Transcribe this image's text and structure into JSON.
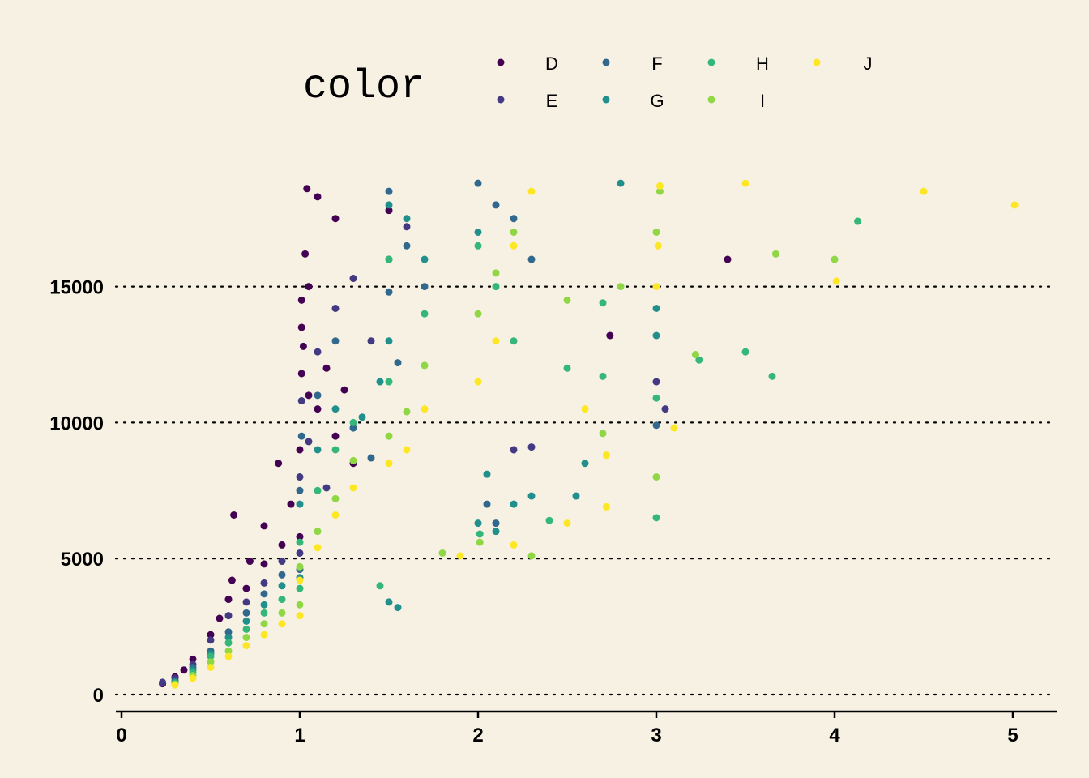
{
  "chart_data": {
    "type": "scatter",
    "title": "",
    "xlabel": "",
    "ylabel": "",
    "xlim": [
      0,
      5.25
    ],
    "ylim": [
      0,
      19000
    ],
    "x_ticks": [
      0,
      1,
      2,
      3,
      4,
      5
    ],
    "y_ticks": [
      0,
      5000,
      10000,
      15000
    ],
    "grid": "horizontal dotted",
    "legend": {
      "title": "color",
      "position": "top",
      "entries": [
        {
          "name": "D",
          "color": "#440154"
        },
        {
          "name": "E",
          "color": "#443A83"
        },
        {
          "name": "F",
          "color": "#31688E"
        },
        {
          "name": "G",
          "color": "#21908C"
        },
        {
          "name": "H",
          "color": "#35B779"
        },
        {
          "name": "I",
          "color": "#8FD744"
        },
        {
          "name": "J",
          "color": "#FDE725"
        }
      ]
    },
    "background": "#F7F1E3",
    "series": [
      {
        "name": "D",
        "color": "#440154",
        "points": [
          [
            0.23,
            400
          ],
          [
            0.3,
            650
          ],
          [
            0.35,
            900
          ],
          [
            0.4,
            1300
          ],
          [
            0.5,
            2200
          ],
          [
            0.55,
            2800
          ],
          [
            0.6,
            3500
          ],
          [
            0.62,
            4200
          ],
          [
            0.63,
            6600
          ],
          [
            0.7,
            3900
          ],
          [
            0.72,
            4900
          ],
          [
            0.8,
            4800
          ],
          [
            0.9,
            5500
          ],
          [
            1.0,
            5800
          ],
          [
            1.0,
            9000
          ],
          [
            1.01,
            11800
          ],
          [
            1.02,
            12800
          ],
          [
            1.03,
            16200
          ],
          [
            1.04,
            18600
          ],
          [
            1.1,
            18300
          ],
          [
            1.2,
            17500
          ],
          [
            1.01,
            13500
          ],
          [
            1.05,
            11000
          ],
          [
            1.1,
            10500
          ],
          [
            1.2,
            9500
          ],
          [
            1.05,
            15000
          ],
          [
            1.01,
            14500
          ],
          [
            3.4,
            16000
          ],
          [
            2.74,
            13200
          ],
          [
            1.5,
            17800
          ],
          [
            1.3,
            8500
          ],
          [
            0.95,
            7000
          ],
          [
            0.88,
            8500
          ],
          [
            0.8,
            6200
          ],
          [
            1.15,
            12000
          ],
          [
            1.25,
            11200
          ]
        ]
      },
      {
        "name": "E",
        "color": "#443A83",
        "points": [
          [
            0.23,
            450
          ],
          [
            0.3,
            600
          ],
          [
            0.4,
            1100
          ],
          [
            0.5,
            2000
          ],
          [
            0.6,
            2900
          ],
          [
            0.7,
            3400
          ],
          [
            0.8,
            4100
          ],
          [
            0.9,
            4900
          ],
          [
            1.0,
            5200
          ],
          [
            1.0,
            8000
          ],
          [
            1.01,
            10800
          ],
          [
            1.1,
            12600
          ],
          [
            1.2,
            14200
          ],
          [
            1.3,
            15300
          ],
          [
            1.5,
            16000
          ],
          [
            1.6,
            17200
          ],
          [
            3.0,
            11500
          ],
          [
            3.05,
            10500
          ],
          [
            1.05,
            9300
          ],
          [
            1.15,
            7600
          ],
          [
            1.4,
            13000
          ],
          [
            2.2,
            9000
          ],
          [
            2.3,
            9100
          ]
        ]
      },
      {
        "name": "F",
        "color": "#31688E",
        "points": [
          [
            0.3,
            500
          ],
          [
            0.4,
            1000
          ],
          [
            0.5,
            1600
          ],
          [
            0.6,
            2300
          ],
          [
            0.7,
            3000
          ],
          [
            0.8,
            3700
          ],
          [
            0.9,
            4400
          ],
          [
            1.0,
            4600
          ],
          [
            1.0,
            7500
          ],
          [
            1.01,
            9500
          ],
          [
            1.1,
            11000
          ],
          [
            1.2,
            13000
          ],
          [
            1.5,
            14800
          ],
          [
            1.5,
            18500
          ],
          [
            1.6,
            16500
          ],
          [
            1.7,
            15000
          ],
          [
            2.0,
            18800
          ],
          [
            2.1,
            18000
          ],
          [
            2.2,
            17500
          ],
          [
            2.3,
            16000
          ],
          [
            3.0,
            9900
          ],
          [
            1.3,
            9800
          ],
          [
            1.4,
            8700
          ],
          [
            1.55,
            12200
          ],
          [
            2.05,
            7000
          ],
          [
            2.1,
            6300
          ]
        ]
      },
      {
        "name": "G",
        "color": "#21908C",
        "points": [
          [
            0.3,
            450
          ],
          [
            0.4,
            900
          ],
          [
            0.5,
            1500
          ],
          [
            0.6,
            2100
          ],
          [
            0.7,
            2700
          ],
          [
            0.8,
            3300
          ],
          [
            0.9,
            4000
          ],
          [
            1.0,
            4300
          ],
          [
            1.0,
            7000
          ],
          [
            1.1,
            9000
          ],
          [
            1.2,
            10500
          ],
          [
            1.5,
            13000
          ],
          [
            1.5,
            18000
          ],
          [
            1.6,
            17500
          ],
          [
            1.7,
            16000
          ],
          [
            2.0,
            17000
          ],
          [
            2.0,
            6300
          ],
          [
            2.1,
            6000
          ],
          [
            2.2,
            7000
          ],
          [
            2.3,
            7300
          ],
          [
            2.6,
            8500
          ],
          [
            3.0,
            14200
          ],
          [
            3.0,
            13200
          ],
          [
            2.8,
            18800
          ],
          [
            1.35,
            10200
          ],
          [
            1.45,
            11500
          ],
          [
            2.05,
            8100
          ],
          [
            2.55,
            7300
          ],
          [
            1.5,
            3400
          ],
          [
            1.55,
            3200
          ]
        ]
      },
      {
        "name": "H",
        "color": "#35B779",
        "points": [
          [
            0.3,
            420
          ],
          [
            0.4,
            800
          ],
          [
            0.5,
            1400
          ],
          [
            0.6,
            1900
          ],
          [
            0.7,
            2400
          ],
          [
            0.8,
            3000
          ],
          [
            0.9,
            3500
          ],
          [
            1.0,
            3900
          ],
          [
            1.0,
            5600
          ],
          [
            1.1,
            7500
          ],
          [
            1.2,
            9000
          ],
          [
            1.3,
            10000
          ],
          [
            1.5,
            11500
          ],
          [
            1.5,
            16000
          ],
          [
            1.7,
            14000
          ],
          [
            2.0,
            16500
          ],
          [
            2.1,
            15000
          ],
          [
            2.2,
            13000
          ],
          [
            2.5,
            12000
          ],
          [
            2.7,
            14400
          ],
          [
            2.7,
            11700
          ],
          [
            3.0,
            6500
          ],
          [
            3.0,
            10900
          ],
          [
            3.24,
            12300
          ],
          [
            3.5,
            12600
          ],
          [
            3.65,
            11700
          ],
          [
            4.13,
            17400
          ],
          [
            2.01,
            5900
          ],
          [
            2.4,
            6400
          ],
          [
            1.45,
            4000
          ]
        ]
      },
      {
        "name": "I",
        "color": "#8FD744",
        "points": [
          [
            0.3,
            380
          ],
          [
            0.4,
            700
          ],
          [
            0.5,
            1200
          ],
          [
            0.6,
            1600
          ],
          [
            0.7,
            2100
          ],
          [
            0.8,
            2600
          ],
          [
            0.9,
            3000
          ],
          [
            1.0,
            3300
          ],
          [
            1.0,
            4700
          ],
          [
            1.1,
            6000
          ],
          [
            1.2,
            7200
          ],
          [
            1.3,
            8600
          ],
          [
            1.5,
            9500
          ],
          [
            1.6,
            10400
          ],
          [
            1.7,
            12100
          ],
          [
            2.0,
            14000
          ],
          [
            2.1,
            15500
          ],
          [
            2.2,
            17000
          ],
          [
            2.5,
            14500
          ],
          [
            2.8,
            15000
          ],
          [
            3.0,
            8000
          ],
          [
            3.0,
            17000
          ],
          [
            3.22,
            12500
          ],
          [
            3.67,
            16200
          ],
          [
            4.0,
            16000
          ],
          [
            2.01,
            5600
          ],
          [
            2.3,
            5100
          ],
          [
            1.8,
            5200
          ],
          [
            2.7,
            9600
          ],
          [
            3.02,
            18500
          ]
        ]
      },
      {
        "name": "J",
        "color": "#FDE725",
        "points": [
          [
            0.3,
            350
          ],
          [
            0.4,
            600
          ],
          [
            0.5,
            1000
          ],
          [
            0.6,
            1400
          ],
          [
            0.7,
            1800
          ],
          [
            0.8,
            2200
          ],
          [
            0.9,
            2600
          ],
          [
            1.0,
            2900
          ],
          [
            1.0,
            4200
          ],
          [
            1.1,
            5400
          ],
          [
            1.2,
            6600
          ],
          [
            1.3,
            7600
          ],
          [
            1.5,
            8500
          ],
          [
            1.6,
            9000
          ],
          [
            1.7,
            10500
          ],
          [
            2.0,
            11500
          ],
          [
            2.1,
            13000
          ],
          [
            2.2,
            16500
          ],
          [
            2.3,
            18500
          ],
          [
            2.5,
            6300
          ],
          [
            2.72,
            6900
          ],
          [
            2.72,
            8800
          ],
          [
            3.0,
            15000
          ],
          [
            3.01,
            16500
          ],
          [
            3.02,
            18700
          ],
          [
            3.1,
            9800
          ],
          [
            3.5,
            18800
          ],
          [
            4.01,
            15200
          ],
          [
            4.5,
            18500
          ],
          [
            5.01,
            18000
          ],
          [
            1.9,
            5100
          ],
          [
            2.2,
            5500
          ],
          [
            2.6,
            10500
          ]
        ]
      }
    ]
  }
}
